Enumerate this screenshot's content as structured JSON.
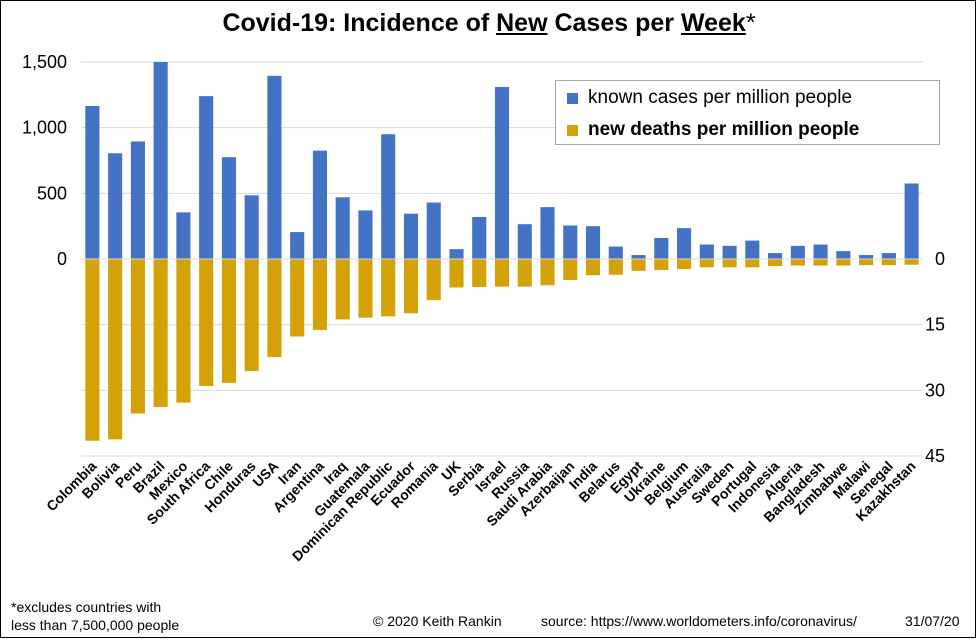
{
  "title": {
    "part1": "Covid-19: Incidence of ",
    "new": "New",
    "part2": " Cases per ",
    "week": "Week",
    "star": "*"
  },
  "legend": {
    "cases_label": "known cases per million people",
    "deaths_label": "new deaths per million people"
  },
  "footer": {
    "note_line1": "*excludes countries with",
    "note_line2": "less than 7,500,000  people",
    "copyright": "© 2020  Keith Rankin",
    "source": "source:  https://www.worldometers.info/coronavirus/",
    "date": "31/07/20"
  },
  "colors": {
    "cases": "#4472c4",
    "deaths": "#d4a106",
    "grid": "#d9d9d9"
  },
  "chart_data": {
    "type": "bar",
    "title": "Covid-19: Incidence of New Cases per Week*",
    "categories": [
      "Colombia",
      "Bolivia",
      "Peru",
      "Brazil",
      "Mexico",
      "South Africa",
      "Chile",
      "Honduras",
      "USA",
      "Iran",
      "Argentina",
      "Iraq",
      "Guatemala",
      "Dominican Republic",
      "Ecuador",
      "Romania",
      "UK",
      "Serbia",
      "Israel",
      "Russia",
      "Saudi Arabia",
      "Azerbaijan",
      "India",
      "Belarus",
      "Egypt",
      "Ukraine",
      "Belgium",
      "Australia",
      "Sweden",
      "Portugal",
      "Indonesia",
      "Algeria",
      "Bangladesh",
      "Zimbabwe",
      "Malawi",
      "Senegal",
      "Kazakhstan"
    ],
    "series": [
      {
        "name": "known cases per million people",
        "axis": "left",
        "values": [
          1165,
          805,
          895,
          1500,
          355,
          1240,
          775,
          485,
          1395,
          205,
          825,
          470,
          370,
          950,
          345,
          430,
          75,
          320,
          1310,
          265,
          395,
          255,
          250,
          95,
          30,
          160,
          235,
          110,
          100,
          140,
          45,
          100,
          110,
          60,
          30,
          45,
          575
        ]
      },
      {
        "name": "new deaths per million people",
        "axis": "right",
        "values": [
          41.5,
          41.2,
          35.3,
          33.8,
          32.8,
          29,
          28.3,
          25.6,
          22.4,
          17.7,
          16.2,
          13.8,
          13.4,
          13.1,
          12.4,
          9.4,
          6.5,
          6.4,
          6.3,
          6.3,
          6,
          4.8,
          3.7,
          3.6,
          2.7,
          2.5,
          2.3,
          1.9,
          1.9,
          1.9,
          1.6,
          1.5,
          1.5,
          1.5,
          1.4,
          1.4,
          1.3
        ]
      }
    ],
    "left_axis": {
      "ticks": [
        "0",
        "500",
        "1,000",
        "1,500"
      ],
      "max": 1500
    },
    "right_axis": {
      "ticks": [
        "0",
        "15",
        "30",
        "45"
      ],
      "max": 45,
      "direction": "downward"
    },
    "grid": true,
    "legend_position": "top-right"
  }
}
